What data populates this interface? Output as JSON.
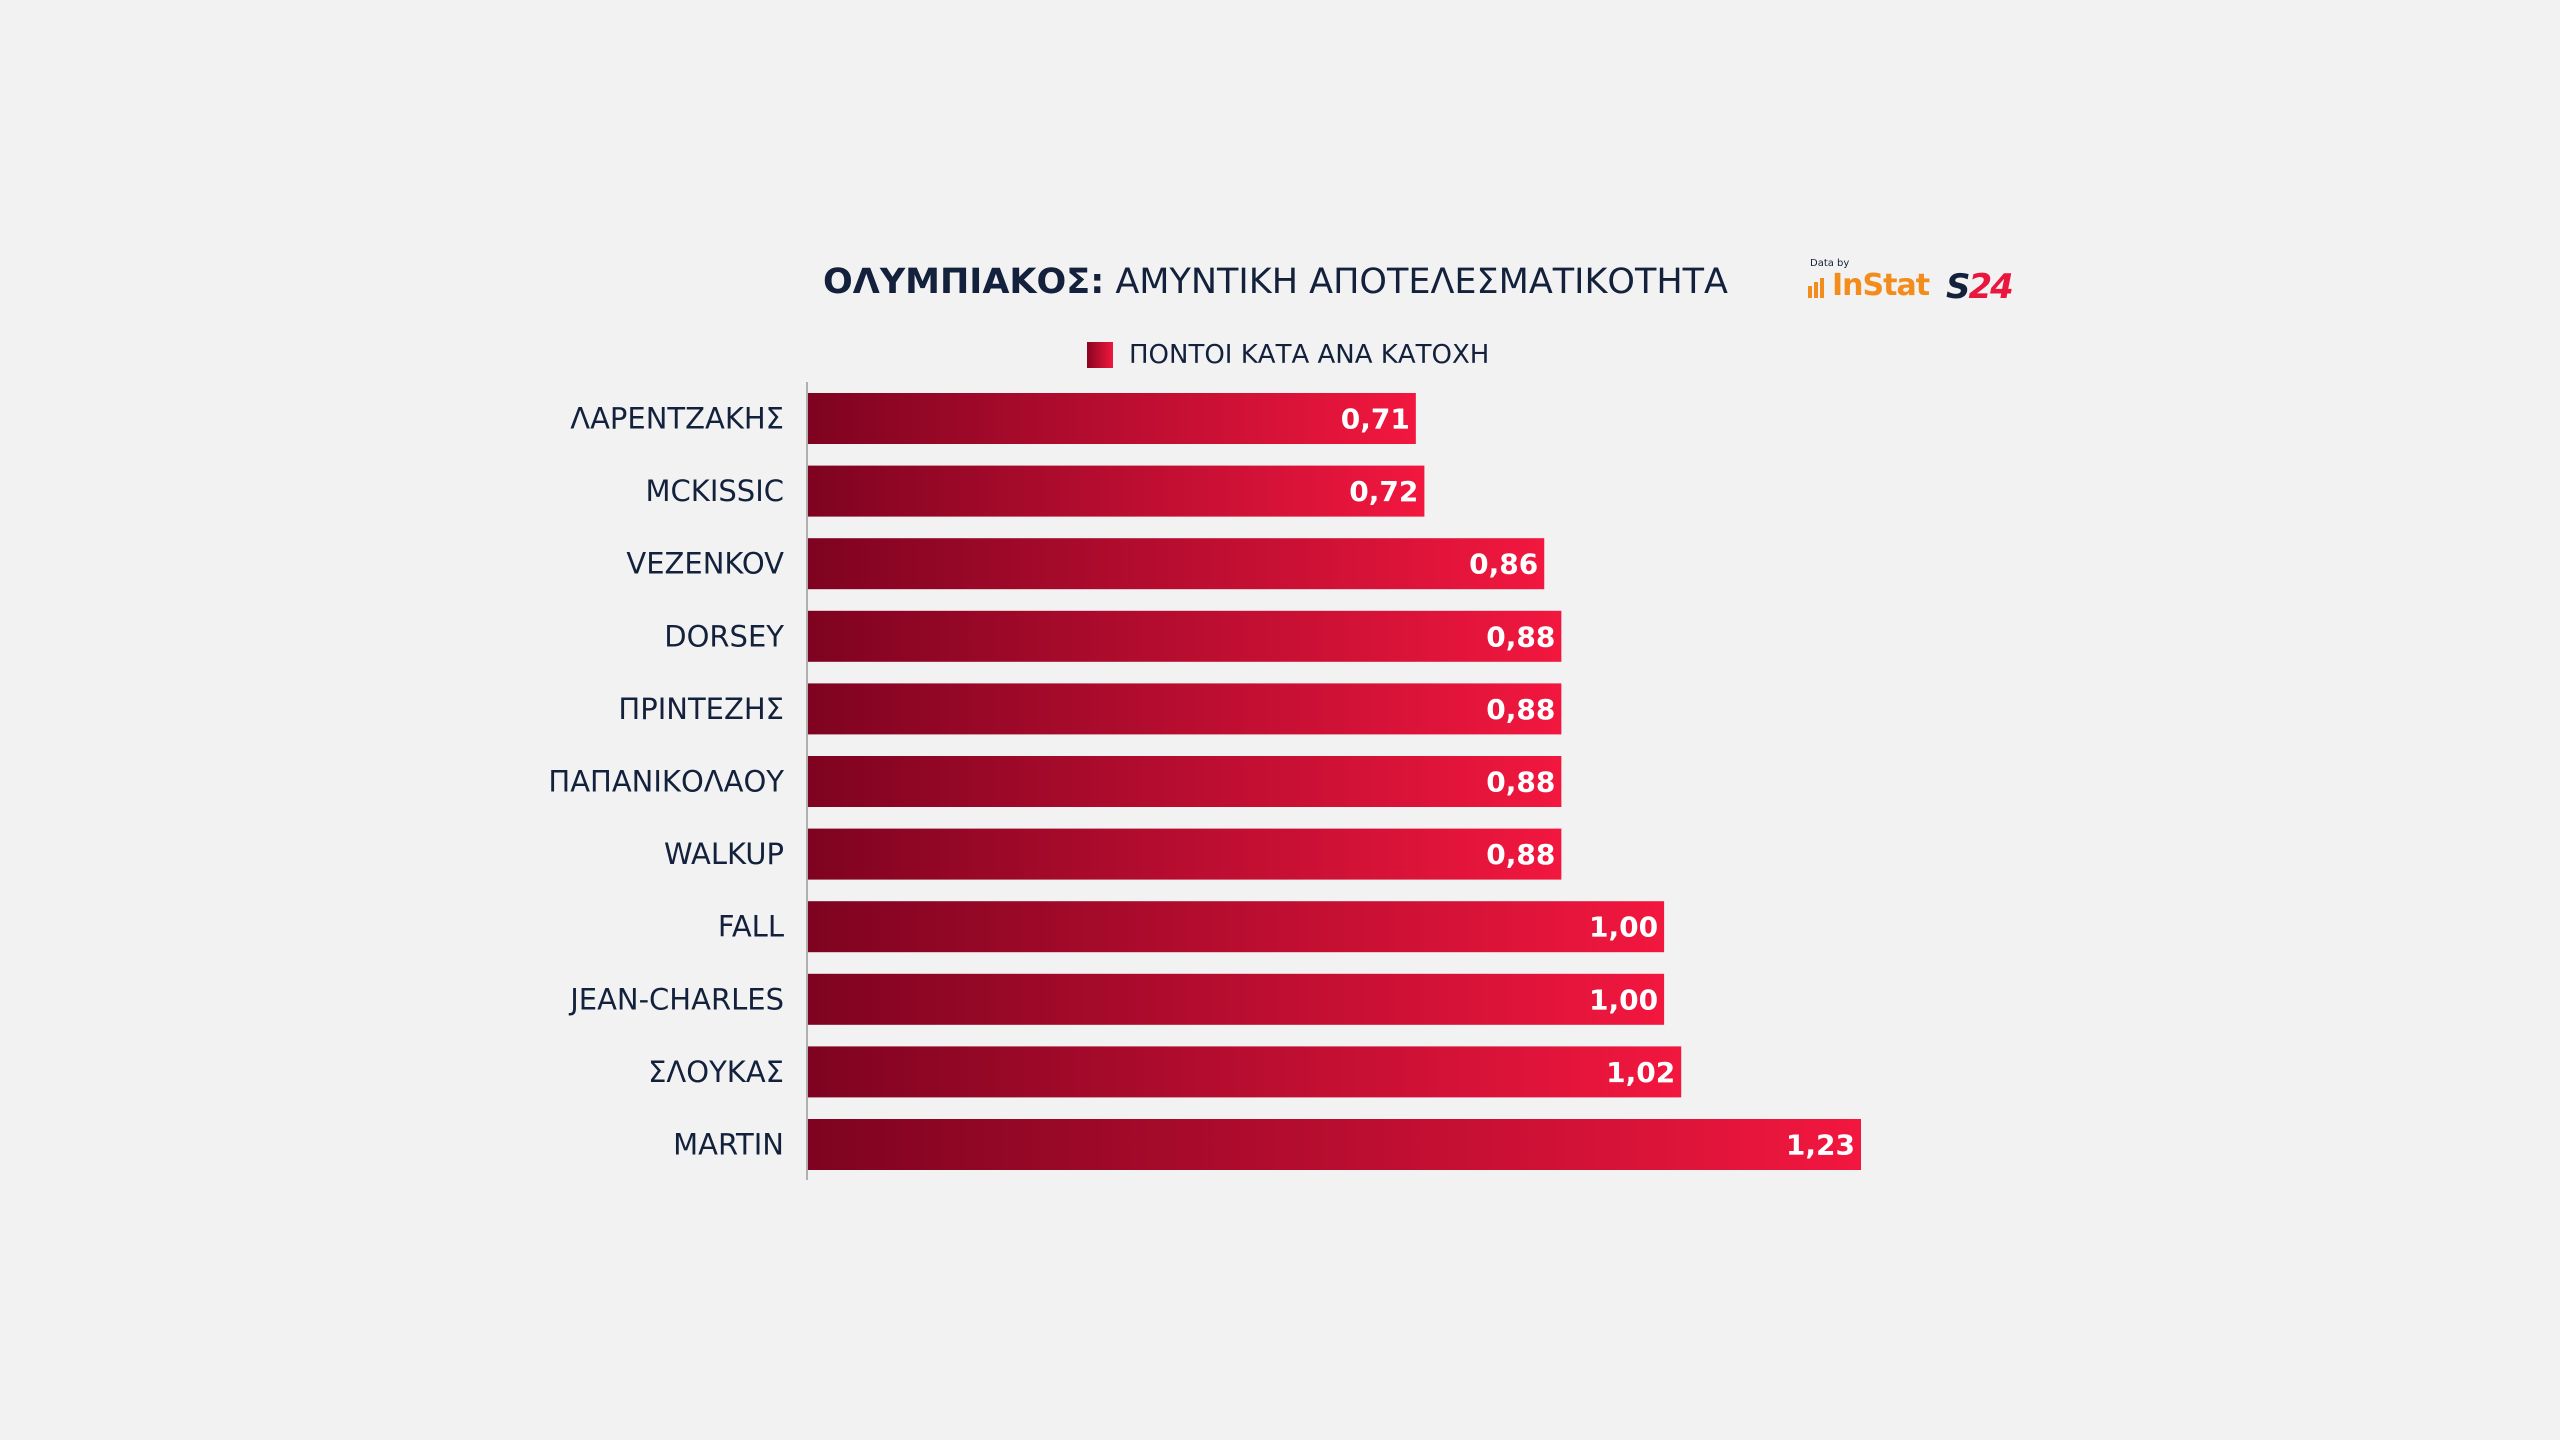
{
  "header": {
    "title_bold": "ΟΛΥΜΠΙΑΚΟΣ:",
    "title_rest": "ΑΜΥΝΤΙΚΗ ΑΠΟΤΕΛΕΣΜΑΤΙΚΟΤΗΤΑ"
  },
  "logos": {
    "data_by": "Data by",
    "instat": "InStat",
    "s24_a": "S",
    "s24_b": "24"
  },
  "colors": {
    "bar_start": "#7e0320",
    "bar_end": "#f2173f",
    "text": "#13213c",
    "axis": "#9a9a9a"
  },
  "chart_data": {
    "type": "bar",
    "orientation": "horizontal",
    "title": "ΟΛΥΜΠΙΑΚΟΣ: ΑΜΥΝΤΙΚΗ ΑΠΟΤΕΛΕΣΜΑΤΙΚΟΤΗΤΑ",
    "legend_position": "top",
    "grid": false,
    "series": [
      {
        "name": "ΠΟΝΤΟΙ ΚΑΤΑ ΑΝΑ ΚΑΤΟΧΗ",
        "values": [
          0.71,
          0.72,
          0.86,
          0.88,
          0.88,
          0.88,
          0.88,
          1.0,
          1.0,
          1.02,
          1.23
        ]
      }
    ],
    "categories": [
      "ΛΑΡΕΝΤΖΑΚΗΣ",
      "MCKISSIC",
      "VEZENKOV",
      "DORSEY",
      "ΠΡΙΝΤΕΖΗΣ",
      "ΠΑΠΑΝΙΚΟΛΑΟΥ",
      "WALKUP",
      "FALL",
      "JEAN-CHARLES",
      "ΣΛΟΥΚΑΣ",
      "MARTIN"
    ],
    "value_labels": [
      "0,71",
      "0,72",
      "0,86",
      "0,88",
      "0,88",
      "0,88",
      "0,88",
      "1,00",
      "1,00",
      "1,02",
      "1,23"
    ],
    "xlim": [
      0,
      1.23
    ]
  }
}
